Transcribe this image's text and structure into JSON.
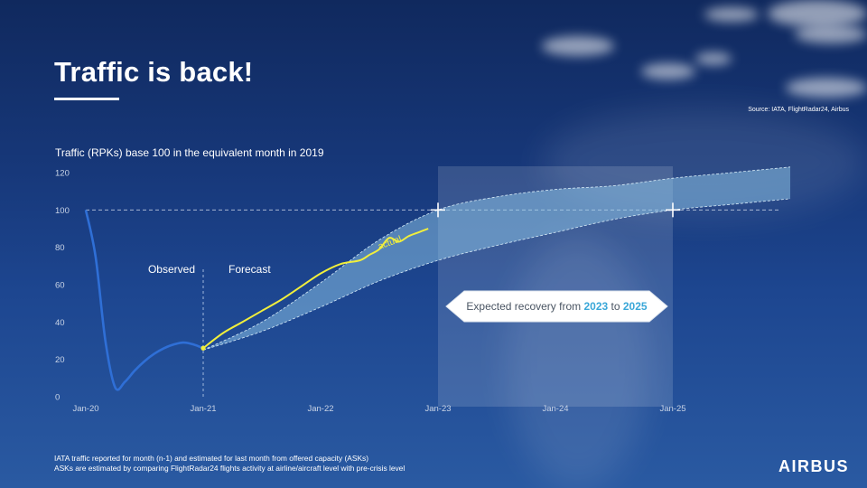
{
  "slide": {
    "title": "Traffic is back!",
    "source": "Source: IATA, FlightRadar24, Airbus",
    "logo": "AIRBUS",
    "footnotes": [
      "IATA traffic reported for month (n-1) and estimated for last month from offered capacity (ASKs)",
      "ASKs are estimated by comparing FlightRadar24 flights activity at airline/aircraft level with pre-crisis level"
    ]
  },
  "chart_data": {
    "type": "line",
    "title": "Traffic (RPKs) base 100 in the equivalent month in 2019",
    "xlabel": "",
    "ylabel": "",
    "ylim": [
      0,
      120
    ],
    "yticks": [
      "0",
      "20",
      "40",
      "60",
      "80",
      "100",
      "120"
    ],
    "xticks": [
      "Jan-20",
      "Jan-21",
      "Jan-22",
      "Jan-23",
      "Jan-24",
      "Jan-25"
    ],
    "reference_line": 100,
    "phase_labels": {
      "observed": "Observed",
      "forecast": "Forecast"
    },
    "series": [
      {
        "name": "",
        "color": "#2f6fd6",
        "x": [
          "2020-01",
          "2020-02",
          "2020-03",
          "2020-04",
          "2020-05",
          "2020-06",
          "2020-07",
          "2020-08",
          "2020-09",
          "2020-10",
          "2020-11",
          "2020-12",
          "2021-01"
        ],
        "values": [
          100,
          75,
          30,
          5,
          8,
          14,
          19,
          23,
          26,
          28,
          29,
          28,
          26
        ]
      },
      {
        "name": "actual",
        "color": "#f1ef3c",
        "x": [
          "2021-01",
          "2021-03",
          "2021-05",
          "2021-07",
          "2021-09",
          "2021-11",
          "2022-01",
          "2022-03",
          "2022-05",
          "2022-06",
          "2022-07",
          "2022-08",
          "2022-09",
          "2022-10",
          "2022-11",
          "2022-12"
        ],
        "values": [
          26,
          34,
          40,
          46,
          52,
          59,
          66,
          71,
          73,
          76,
          79,
          85,
          83,
          86,
          88,
          90
        ]
      },
      {
        "name": "Forecast upper bound",
        "x": [
          "2021-01",
          "2021-07",
          "2022-01",
          "2022-07",
          "2023-01",
          "2023-07",
          "2024-01",
          "2024-07",
          "2025-01",
          "2025-07",
          "2026-01"
        ],
        "values": [
          25,
          40,
          61,
          84,
          100,
          107,
          111,
          113,
          117,
          120,
          123
        ]
      },
      {
        "name": "Forecast lower bound",
        "x": [
          "2021-01",
          "2021-07",
          "2022-01",
          "2022-07",
          "2023-01",
          "2023-07",
          "2024-01",
          "2024-07",
          "2025-01",
          "2025-07",
          "2026-01"
        ],
        "values": [
          25,
          35,
          48,
          62,
          73,
          81,
          88,
          95,
          100,
          103,
          106
        ]
      }
    ],
    "recovery_window": {
      "from": "2023-01",
      "to": "2025-01"
    },
    "recovery_markers": [
      "2023-01",
      "2025-01"
    ],
    "annotation": {
      "prefix": "Expected recovery from ",
      "year_from": "2023",
      "joiner": " to ",
      "year_to": "2025"
    },
    "grid": false,
    "legend": "none"
  },
  "colors": {
    "observed_line": "#2f6fd6",
    "actual_line": "#f1ef3c",
    "forecast_band": "#8fc8ea",
    "accent_year": "#3aa7d8"
  }
}
